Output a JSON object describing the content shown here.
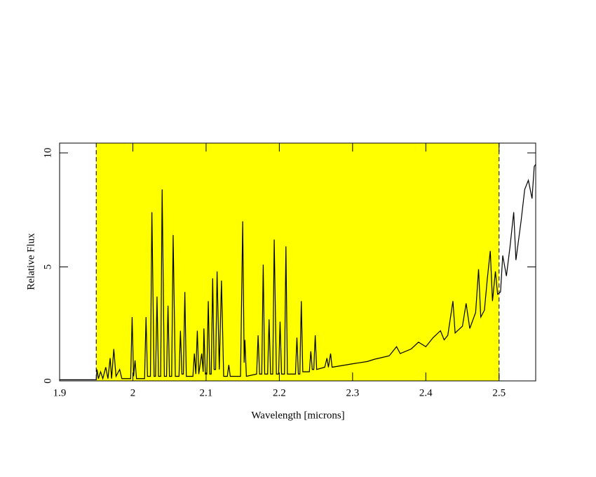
{
  "chart_data": {
    "type": "line",
    "x_label": "Wavelength [microns]",
    "y_label": "Relative Flux",
    "xlim": [
      1.9,
      2.55
    ],
    "ylim": [
      0,
      10.43
    ],
    "xticks": [
      1.9,
      2,
      2.1,
      2.2,
      2.3,
      2.4,
      2.5
    ],
    "yticks": [
      0,
      5,
      10
    ],
    "color": "#000000",
    "shaded_region": {
      "xlim": [
        1.95,
        2.5
      ],
      "color": "#ffff00"
    },
    "x": [
      1.9,
      1.95,
      1.951,
      1.953,
      1.956,
      1.959,
      1.963,
      1.966,
      1.969,
      1.971,
      1.974,
      1.977,
      1.982,
      1.985,
      1.997,
      1.999,
      2.001,
      2.003,
      2.005,
      2.016,
      2.018,
      2.02,
      2.024,
      2.026,
      2.029,
      2.031,
      2.033,
      2.035,
      2.038,
      2.04,
      2.043,
      2.046,
      2.048,
      2.05,
      2.053,
      2.055,
      2.058,
      2.063,
      2.065,
      2.067,
      2.069,
      2.071,
      2.073,
      2.082,
      2.084,
      2.086,
      2.088,
      2.09,
      2.094,
      2.096,
      2.097,
      2.099,
      2.101,
      2.103,
      2.105,
      2.107,
      2.109,
      2.111,
      2.113,
      2.115,
      2.118,
      2.121,
      2.124,
      2.129,
      2.131,
      2.133,
      2.147,
      2.15,
      2.152,
      2.153,
      2.155,
      2.169,
      2.171,
      2.173,
      2.176,
      2.178,
      2.18,
      2.184,
      2.186,
      2.188,
      2.191,
      2.193,
      2.196,
      2.199,
      2.201,
      2.203,
      2.207,
      2.209,
      2.211,
      2.222,
      2.224,
      2.226,
      2.228,
      2.23,
      2.232,
      2.241,
      2.243,
      2.245,
      2.247,
      2.249,
      2.251,
      2.262,
      2.265,
      2.267,
      2.27,
      2.272,
      2.3,
      2.32,
      2.33,
      2.35,
      2.36,
      2.365,
      2.38,
      2.39,
      2.4,
      2.41,
      2.42,
      2.425,
      2.43,
      2.437,
      2.44,
      2.45,
      2.455,
      2.46,
      2.468,
      2.472,
      2.475,
      2.48,
      2.484,
      2.488,
      2.491,
      2.495,
      2.498,
      2.502,
      2.505,
      2.51,
      2.515,
      2.52,
      2.523,
      2.53,
      2.535,
      2.54,
      2.545,
      2.548,
      2.55
    ],
    "values": [
      0.05,
      0.05,
      0.5,
      0.1,
      0.4,
      0.1,
      0.6,
      0.1,
      1.0,
      0.1,
      1.4,
      0.2,
      0.5,
      0.1,
      0.1,
      2.8,
      0.2,
      0.9,
      0.1,
      0.1,
      2.8,
      0.2,
      0.2,
      7.4,
      0.2,
      0.2,
      3.7,
      0.2,
      0.2,
      8.4,
      0.2,
      0.2,
      3.3,
      0.2,
      0.2,
      6.4,
      0.2,
      0.2,
      2.2,
      0.3,
      0.3,
      3.9,
      0.2,
      0.2,
      1.2,
      0.3,
      2.2,
      0.3,
      1.2,
      0.4,
      2.3,
      0.3,
      0.3,
      3.5,
      0.3,
      0.3,
      4.5,
      0.5,
      0.5,
      4.8,
      0.5,
      4.4,
      0.2,
      0.2,
      0.7,
      0.2,
      0.2,
      7.0,
      0.8,
      1.8,
      0.2,
      0.3,
      2.0,
      0.3,
      0.3,
      5.1,
      0.3,
      0.3,
      2.7,
      0.3,
      0.3,
      6.2,
      0.3,
      0.3,
      2.6,
      0.3,
      0.3,
      5.9,
      0.3,
      0.3,
      1.9,
      0.3,
      0.3,
      3.5,
      0.4,
      0.4,
      1.3,
      0.5,
      0.5,
      2.0,
      0.5,
      0.6,
      1.0,
      0.6,
      1.2,
      0.6,
      0.75,
      0.85,
      0.95,
      1.1,
      1.5,
      1.2,
      1.4,
      1.7,
      1.5,
      1.9,
      2.2,
      1.8,
      2.0,
      3.5,
      2.1,
      2.4,
      3.4,
      2.3,
      3.0,
      4.9,
      2.8,
      3.1,
      4.5,
      5.7,
      3.5,
      4.8,
      3.8,
      3.9,
      5.5,
      4.6,
      5.9,
      7.4,
      5.3,
      7.0,
      8.4,
      8.8,
      8.0,
      9.4,
      9.5
    ]
  }
}
